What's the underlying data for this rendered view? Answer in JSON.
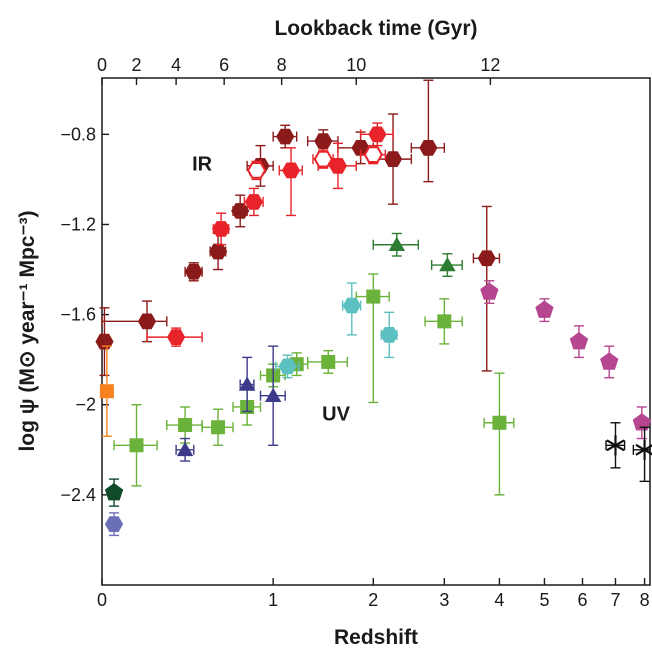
{
  "chart_data": {
    "type": "scatter",
    "xlabel": "Redshift",
    "ylabel": "log ψ (M⊙ year⁻¹ Mpc⁻³)",
    "x2label": "Lookback time (Gyr)",
    "x_scale": "log(1+z)",
    "xlim": [
      0,
      8.2
    ],
    "ylim": [
      -2.8,
      -0.55
    ],
    "x_ticks": [
      0,
      1,
      2,
      3,
      4,
      5,
      6,
      7,
      8
    ],
    "y_ticks": [
      -2.4,
      -2.0,
      -1.6,
      -1.2,
      -0.8
    ],
    "y_tick_labels": [
      "−2.4",
      "−2",
      "−1.6",
      "−1.2",
      "−0.8"
    ],
    "x2_ticks": [
      {
        "label": "0",
        "z": 0
      },
      {
        "label": "2",
        "z": 0.15
      },
      {
        "label": "4",
        "z": 0.35
      },
      {
        "label": "6",
        "z": 0.64
      },
      {
        "label": "8",
        "z": 1.07
      },
      {
        "label": "10",
        "z": 1.8
      },
      {
        "label": "12",
        "z": 3.82
      }
    ],
    "annotations": [
      {
        "text": "IR",
        "x": 0.5,
        "y": -0.93
      },
      {
        "text": "UV",
        "x": 1.58,
        "y": -2.04
      }
    ],
    "grid": false,
    "legend": "none",
    "series": [
      {
        "marker": "hexagon",
        "color": "#8b1a1a",
        "filled": true,
        "points": [
          {
            "x": 0.01,
            "y": -1.72,
            "xerr": [
              0.01,
              0.02
            ],
            "yerr": [
              0.15,
              0.15
            ]
          },
          {
            "x": 0.2,
            "y": -1.63,
            "xerr": [
              0.2,
              0.1
            ],
            "yerr": [
              0.09,
              0.09
            ]
          },
          {
            "x": 0.45,
            "y": -1.41,
            "xerr": [
              0.05,
              0.05
            ],
            "yerr": [
              0.04,
              0.04
            ]
          },
          {
            "x": 0.6,
            "y": -1.32,
            "xerr": [
              0.05,
              0.05
            ],
            "yerr": [
              0.08,
              0.08
            ]
          },
          {
            "x": 0.75,
            "y": -1.14,
            "xerr": [
              0.05,
              0.05
            ],
            "yerr": [
              0.07,
              0.07
            ]
          },
          {
            "x": 0.9,
            "y": -0.94,
            "xerr": [
              0.1,
              0.1
            ],
            "yerr": [
              0.09,
              0.09
            ]
          },
          {
            "x": 1.1,
            "y": -0.81,
            "xerr": [
              0.1,
              0.1
            ],
            "yerr": [
              0.05,
              0.05
            ]
          },
          {
            "x": 1.45,
            "y": -0.83,
            "xerr": [
              0.15,
              0.15
            ],
            "yerr": [
              0.05,
              0.05
            ]
          },
          {
            "x": 1.85,
            "y": -0.86,
            "xerr": [
              0.25,
              0.15
            ],
            "yerr": [
              0.07,
              0.07
            ]
          },
          {
            "x": 2.25,
            "y": -0.91,
            "xerr": [
              0.25,
              0.25
            ],
            "yerr": [
              0.2,
              0.2
            ]
          },
          {
            "x": 2.75,
            "y": -0.86,
            "xerr": [
              0.25,
              0.25
            ],
            "yerr": [
              0.15,
              0.3
            ]
          },
          {
            "x": 3.75,
            "y": -1.35,
            "xerr": [
              0.25,
              0.25
            ],
            "yerr": [
              0.5,
              0.23
            ]
          }
        ]
      },
      {
        "marker": "hexagon",
        "color": "#e8232a",
        "filled": true,
        "points": [
          {
            "x": 0.35,
            "y": -1.7,
            "xerr": [
              0.15,
              0.15
            ],
            "yerr": [
              0.04,
              0.04
            ]
          },
          {
            "x": 0.62,
            "y": -1.22,
            "xerr": [
              0.05,
              0.05
            ],
            "yerr": [
              0.07,
              0.07
            ]
          },
          {
            "x": 0.85,
            "y": -1.1,
            "xerr": [
              0.07,
              0.07
            ],
            "yerr": [
              0.06,
              0.06
            ]
          },
          {
            "x": 1.15,
            "y": -0.96,
            "xerr": [
              0.1,
              0.1
            ],
            "yerr": [
              0.2,
              0.1
            ]
          },
          {
            "x": 1.6,
            "y": -0.94,
            "xerr": [
              0.2,
              0.2
            ],
            "yerr": [
              0.1,
              0.1
            ]
          },
          {
            "x": 2.05,
            "y": -0.8,
            "xerr": [
              0.2,
              0.2
            ],
            "yerr": [
              0.05,
              0.05
            ]
          }
        ]
      },
      {
        "marker": "hexagon",
        "color": "#e8232a",
        "filled": false,
        "points": [
          {
            "x": 0.87,
            "y": -0.96,
            "xerr": [
              0.05,
              0.05
            ],
            "yerr": [
              0.04,
              0.04
            ]
          },
          {
            "x": 1.45,
            "y": -0.91,
            "xerr": [
              0.1,
              0.1
            ],
            "yerr": [
              0.04,
              0.04
            ]
          },
          {
            "x": 2.0,
            "y": -0.89,
            "xerr": [
              0.15,
              0.15
            ],
            "yerr": [
              0.04,
              0.04
            ]
          }
        ]
      },
      {
        "marker": "square",
        "color": "#f5821f",
        "filled": true,
        "points": [
          {
            "x": 0.02,
            "y": -1.94,
            "xerr": [
              0.02,
              0.02
            ],
            "yerr": [
              0.2,
              0.2
            ]
          }
        ]
      },
      {
        "marker": "pentagon",
        "color": "#0f4a2b",
        "filled": true,
        "points": [
          {
            "x": 0.05,
            "y": -2.39,
            "xerr": [
              0.01,
              0.01
            ],
            "yerr": [
              0.06,
              0.06
            ]
          }
        ]
      },
      {
        "marker": "hexagon",
        "color": "#6b6fb8",
        "filled": true,
        "points": [
          {
            "x": 0.05,
            "y": -2.53,
            "xerr": [
              0.01,
              0.01
            ],
            "yerr": [
              0.05,
              0.05
            ]
          }
        ]
      },
      {
        "marker": "square",
        "color": "#6ab23a",
        "filled": true,
        "points": [
          {
            "x": 0.15,
            "y": -2.18,
            "xerr": [
              0.1,
              0.1
            ],
            "yerr": [
              0.18,
              0.18
            ]
          },
          {
            "x": 0.4,
            "y": -2.09,
            "xerr": [
              0.1,
              0.1
            ],
            "yerr": [
              0.08,
              0.08
            ]
          },
          {
            "x": 0.6,
            "y": -2.1,
            "xerr": [
              0.1,
              0.1
            ],
            "yerr": [
              0.08,
              0.08
            ]
          },
          {
            "x": 0.8,
            "y": -2.01,
            "xerr": [
              0.1,
              0.1
            ],
            "yerr": [
              0.08,
              0.08
            ]
          },
          {
            "x": 1.0,
            "y": -1.87,
            "xerr": [
              0.1,
              0.1
            ],
            "yerr": [
              0.05,
              0.05
            ]
          },
          {
            "x": 1.2,
            "y": -1.82,
            "xerr": [
              0.1,
              0.1
            ],
            "yerr": [
              0.05,
              0.05
            ]
          },
          {
            "x": 1.5,
            "y": -1.81,
            "xerr": [
              0.2,
              0.2
            ],
            "yerr": [
              0.05,
              0.05
            ]
          },
          {
            "x": 2.0,
            "y": -1.52,
            "xerr": [
              0.2,
              0.2
            ],
            "yerr": [
              0.47,
              0.1
            ]
          },
          {
            "x": 3.0,
            "y": -1.63,
            "xerr": [
              0.3,
              0.3
            ],
            "yerr": [
              0.1,
              0.1
            ]
          },
          {
            "x": 4.0,
            "y": -2.08,
            "xerr": [
              0.3,
              0.3
            ],
            "yerr": [
              0.32,
              0.22
            ]
          }
        ]
      },
      {
        "marker": "triangle",
        "color": "#3d3a8a",
        "filled": true,
        "points": [
          {
            "x": 0.4,
            "y": -2.2,
            "xerr": [
              0.05,
              0.05
            ],
            "yerr": [
              0.05,
              0.05
            ]
          },
          {
            "x": 0.8,
            "y": -1.91,
            "xerr": [
              0.05,
              0.05
            ],
            "yerr": [
              0.12,
              0.12
            ]
          },
          {
            "x": 1.0,
            "y": -1.96,
            "xerr": [
              0.1,
              0.1
            ],
            "yerr": [
              0.22,
              0.22
            ]
          }
        ]
      },
      {
        "marker": "hexagon",
        "color": "#5cc0c0",
        "filled": true,
        "points": [
          {
            "x": 1.12,
            "y": -1.83,
            "xerr": [
              0.1,
              0.1
            ],
            "yerr": [
              0.05,
              0.05
            ]
          },
          {
            "x": 1.75,
            "y": -1.56,
            "xerr": [
              0.1,
              0.1
            ],
            "yerr": [
              0.13,
              0.1
            ]
          },
          {
            "x": 2.2,
            "y": -1.69,
            "xerr": [
              0.1,
              0.1
            ],
            "yerr": [
              0.1,
              0.1
            ]
          }
        ]
      },
      {
        "marker": "triangle",
        "color": "#2e7d32",
        "filled": true,
        "points": [
          {
            "x": 2.3,
            "y": -1.29,
            "xerr": [
              0.3,
              0.3
            ],
            "yerr": [
              0.05,
              0.05
            ]
          },
          {
            "x": 3.05,
            "y": -1.38,
            "xerr": [
              0.25,
              0.25
            ],
            "yerr": [
              0.05,
              0.05
            ]
          }
        ]
      },
      {
        "marker": "pentagon",
        "color": "#b5468f",
        "filled": true,
        "points": [
          {
            "x": 3.8,
            "y": -1.5,
            "xerr": [
              0.1,
              0.1
            ],
            "yerr": [
              0.05,
              0.05
            ]
          },
          {
            "x": 5.0,
            "y": -1.58,
            "xerr": [
              0.1,
              0.1
            ],
            "yerr": [
              0.05,
              0.05
            ]
          },
          {
            "x": 5.9,
            "y": -1.72,
            "xerr": [
              0.1,
              0.1
            ],
            "yerr": [
              0.07,
              0.07
            ]
          },
          {
            "x": 6.8,
            "y": -1.81,
            "xerr": [
              0.1,
              0.1
            ],
            "yerr": [
              0.07,
              0.07
            ]
          },
          {
            "x": 7.9,
            "y": -2.08,
            "xerr": [
              0.1,
              0.1
            ],
            "yerr": [
              0.07,
              0.07
            ]
          }
        ]
      },
      {
        "marker": "star",
        "color": "#111111",
        "filled": false,
        "points": [
          {
            "x": 7.0,
            "y": -2.18,
            "xerr": [
              0.3,
              0.3
            ],
            "yerr": [
              0.1,
              0.1
            ]
          },
          {
            "x": 8.0,
            "y": -2.2,
            "xerr": [
              0.4,
              0.4
            ],
            "yerr": [
              0.14,
              0.1
            ]
          }
        ]
      }
    ]
  }
}
